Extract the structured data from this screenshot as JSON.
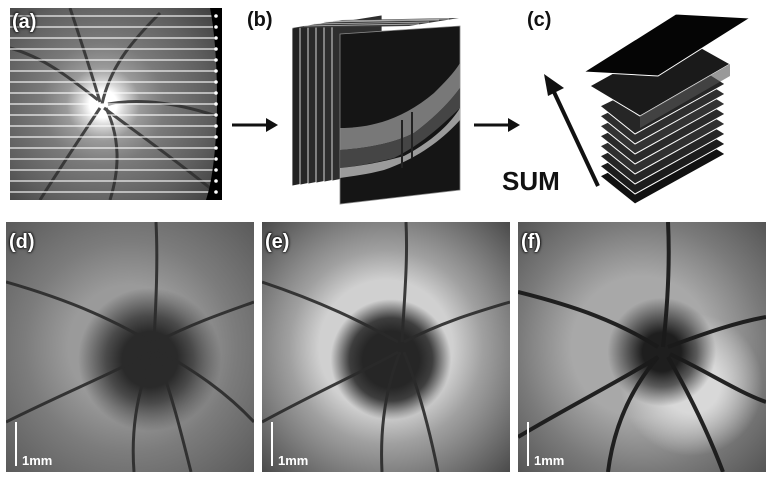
{
  "panels": {
    "a": "(a)",
    "b": "(b)",
    "c": "(c)",
    "d": "(d)",
    "e": "(e)",
    "f": "(f)"
  },
  "sum_label": "SUM",
  "scale_label": "1mm",
  "colors": {
    "label": "#ffffff",
    "dark_label": "#111111",
    "arrow": "#111111"
  }
}
